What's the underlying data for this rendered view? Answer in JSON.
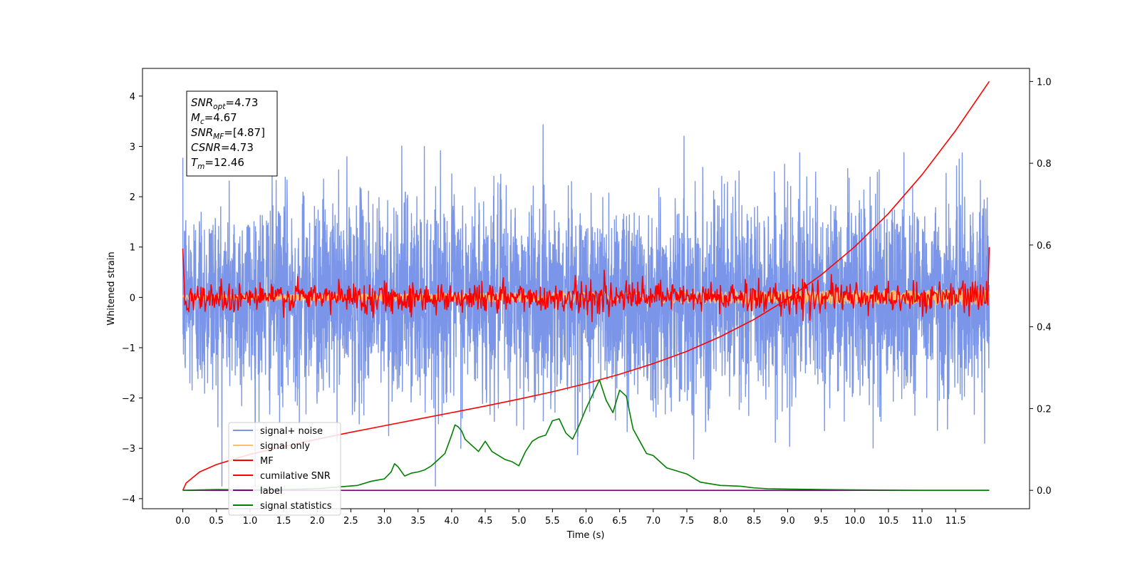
{
  "chart_data": {
    "type": "line",
    "title": "",
    "xlabel": "Time (s)",
    "ylabel": "Whitened strain",
    "xlim": [
      -0.6,
      12.6
    ],
    "ylim": [
      -4.2,
      4.55
    ],
    "ylim_right": [
      -0.045,
      1.032
    ],
    "x_ticks": [
      "0.0",
      "0.5",
      "1.0",
      "1.5",
      "2.0",
      "2.5",
      "3.0",
      "3.5",
      "4.0",
      "4.5",
      "5.0",
      "5.5",
      "6.0",
      "6.5",
      "7.0",
      "7.5",
      "8.0",
      "8.5",
      "9.0",
      "9.5",
      "10.0",
      "10.5",
      "11.0",
      "11.5"
    ],
    "y_ticks": [
      "4",
      "3",
      "2",
      "1",
      "0",
      "−1",
      "−2",
      "−3",
      "−4"
    ],
    "y_ticks_right": [
      "1.0",
      "0.8",
      "0.6",
      "0.4",
      "0.2",
      "0.0"
    ],
    "info_box": [
      {
        "base": "SNR",
        "sub": "opt",
        "value": "=4.73"
      },
      {
        "base": "M",
        "sub": "c",
        "value": "=4.67"
      },
      {
        "base": "SNR",
        "sub": "MF",
        "value": "=[4.87]"
      },
      {
        "base": "CSNR",
        "sub": "",
        "value": "=4.73"
      },
      {
        "base": "T",
        "sub": "m",
        "value": "=12.46"
      }
    ],
    "legend": {
      "position": "lower-left",
      "entries": [
        {
          "label": "signal+ noise",
          "color": "#7b96e8"
        },
        {
          "label": "signal only",
          "color": "#ffbf72"
        },
        {
          "label": "MF",
          "color": "#ff0000"
        },
        {
          "label": "cumilative SNR",
          "color": "#ff0000"
        },
        {
          "label": "label",
          "color": "#800080"
        },
        {
          "label": "signal statistics",
          "color": "#008000"
        }
      ]
    },
    "series": [
      {
        "name": "signal+ noise",
        "axis": "left",
        "color": "#7b96e8",
        "noise_std": 1.0,
        "x_range": [
          0.0,
          12.0
        ]
      },
      {
        "name": "signal only",
        "axis": "left",
        "color": "#ffbf72",
        "amplitude": 0.15,
        "x_range": [
          0.0,
          12.0
        ]
      },
      {
        "name": "MF",
        "axis": "left",
        "color": "#ff0000",
        "start": 0.97,
        "end": 1.0,
        "noise_std": 0.15,
        "x_range": [
          0.0,
          12.0
        ]
      },
      {
        "name": "cumilative SNR",
        "axis": "right",
        "x": [
          0.0,
          0.05,
          0.25,
          0.5,
          1.0,
          1.5,
          2.0,
          2.5,
          3.0,
          3.5,
          4.0,
          4.5,
          5.0,
          5.5,
          6.0,
          6.5,
          7.0,
          7.5,
          8.0,
          8.5,
          9.0,
          9.5,
          10.0,
          10.5,
          11.0,
          11.5,
          12.0
        ],
        "y": [
          0.0,
          0.018,
          0.045,
          0.063,
          0.088,
          0.107,
          0.125,
          0.142,
          0.158,
          0.174,
          0.19,
          0.206,
          0.223,
          0.241,
          0.261,
          0.284,
          0.31,
          0.34,
          0.376,
          0.418,
          0.468,
          0.527,
          0.596,
          0.677,
          0.772,
          0.88,
          1.0
        ]
      },
      {
        "name": "label",
        "axis": "right",
        "x": [
          0.0,
          12.0
        ],
        "y": [
          0.0,
          0.0
        ]
      },
      {
        "name": "signal statistics",
        "axis": "right",
        "x": [
          0.0,
          0.5,
          1.0,
          1.5,
          2.0,
          2.3,
          2.6,
          2.8,
          2.9,
          3.0,
          3.1,
          3.15,
          3.2,
          3.3,
          3.4,
          3.5,
          3.6,
          3.7,
          3.8,
          3.9,
          4.0,
          4.05,
          4.1,
          4.15,
          4.2,
          4.3,
          4.4,
          4.5,
          4.6,
          4.7,
          4.8,
          4.9,
          5.0,
          5.1,
          5.2,
          5.3,
          5.4,
          5.5,
          5.6,
          5.7,
          5.8,
          5.9,
          6.0,
          6.1,
          6.2,
          6.3,
          6.4,
          6.5,
          6.6,
          6.7,
          6.8,
          6.9,
          7.0,
          7.1,
          7.2,
          7.3,
          7.5,
          7.7,
          8.0,
          8.3,
          8.5,
          8.7,
          9.0,
          9.5,
          10.0,
          11.0,
          11.99
        ],
        "y": [
          0.0,
          0.002,
          0.001,
          0.002,
          0.004,
          0.008,
          0.012,
          0.022,
          0.025,
          0.028,
          0.045,
          0.065,
          0.058,
          0.035,
          0.042,
          0.045,
          0.05,
          0.06,
          0.075,
          0.09,
          0.135,
          0.16,
          0.155,
          0.145,
          0.125,
          0.11,
          0.095,
          0.12,
          0.095,
          0.085,
          0.075,
          0.07,
          0.06,
          0.095,
          0.12,
          0.13,
          0.135,
          0.17,
          0.175,
          0.14,
          0.125,
          0.16,
          0.2,
          0.235,
          0.27,
          0.22,
          0.19,
          0.245,
          0.23,
          0.15,
          0.12,
          0.09,
          0.085,
          0.07,
          0.055,
          0.05,
          0.04,
          0.02,
          0.012,
          0.01,
          0.006,
          0.004,
          0.003,
          0.002,
          0.001,
          0.0,
          0.0
        ]
      }
    ]
  }
}
